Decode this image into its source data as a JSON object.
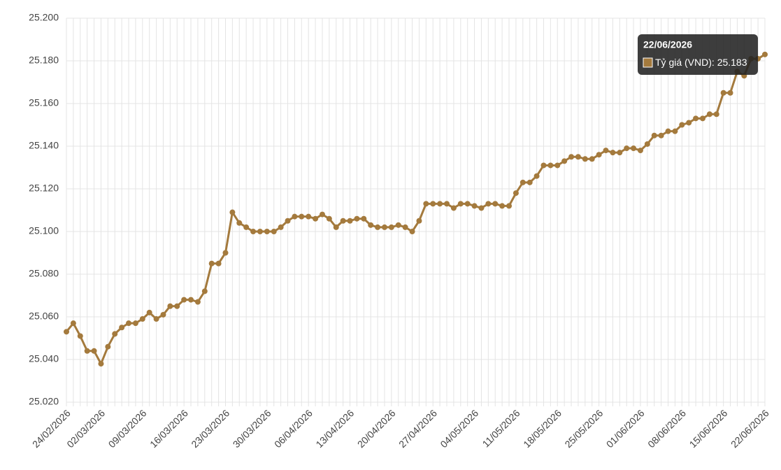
{
  "chart_data": {
    "type": "line",
    "x": [
      "24/02/2026",
      null,
      null,
      null,
      null,
      "02/03/2026",
      null,
      null,
      null,
      null,
      null,
      "09/03/2026",
      null,
      null,
      null,
      null,
      null,
      "16/03/2026",
      null,
      null,
      null,
      null,
      null,
      "23/03/2026",
      null,
      null,
      null,
      null,
      null,
      "30/03/2026",
      null,
      null,
      null,
      null,
      null,
      "06/04/2026",
      null,
      null,
      null,
      null,
      null,
      "13/04/2026",
      null,
      null,
      null,
      null,
      null,
      "20/04/2026",
      null,
      null,
      null,
      null,
      null,
      "27/04/2026",
      null,
      null,
      null,
      null,
      null,
      "04/05/2026",
      null,
      null,
      null,
      null,
      null,
      "11/05/2026",
      null,
      null,
      null,
      null,
      null,
      "18/05/2026",
      null,
      null,
      null,
      null,
      null,
      "25/05/2026",
      null,
      null,
      null,
      null,
      null,
      "01/06/2026",
      null,
      null,
      null,
      null,
      null,
      "08/06/2026",
      null,
      null,
      null,
      null,
      null,
      "15/06/2026",
      null,
      null,
      null,
      null,
      null,
      "22/06/2026"
    ],
    "series": [
      {
        "name": "Tỷ giá (VND)",
        "color": "#a47a3d",
        "values": [
          25053,
          25057,
          25051,
          25044,
          25044,
          25038,
          25046,
          25052,
          25055,
          25057,
          25057,
          25059,
          25062,
          25059,
          25061,
          25065,
          25065,
          25068,
          25068,
          25067,
          25072,
          25085,
          25085,
          25090,
          25109,
          25104,
          25102,
          25100,
          25100,
          25100,
          25100,
          25102,
          25105,
          25107,
          25107,
          25107,
          25106,
          25108,
          25106,
          25102,
          25105,
          25105,
          25106,
          25106,
          25103,
          25102,
          25102,
          25102,
          25103,
          25102,
          25100,
          25105,
          25113,
          25113,
          25113,
          25113,
          25111,
          25113,
          25113,
          25112,
          25111,
          25113,
          25113,
          25112,
          25112,
          25118,
          25123,
          25123,
          25126,
          25131,
          25131,
          25131,
          25133,
          25135,
          25135,
          25134,
          25134,
          25136,
          25138,
          25137,
          25137,
          25139,
          25139,
          25138,
          25141,
          25145,
          25145,
          25147,
          25147,
          25150,
          25151,
          25153,
          25153,
          25155,
          25155,
          25165,
          25165,
          25175,
          25173,
          25181,
          25181,
          25183
        ],
        "value_labels": [
          null,
          null,
          null,
          null,
          null,
          null,
          null,
          null,
          null,
          null,
          null,
          null,
          null,
          null,
          null,
          null,
          null,
          null,
          null,
          null,
          null,
          null,
          null,
          null,
          null,
          null,
          null,
          null,
          null,
          null,
          null,
          null,
          null,
          null,
          null,
          null,
          null,
          null,
          null,
          null,
          null,
          null,
          null,
          null,
          null,
          null,
          null,
          null,
          null,
          null,
          null,
          null,
          null,
          null,
          null,
          null,
          null,
          null,
          null,
          null,
          null,
          null,
          null,
          null,
          null,
          null,
          null,
          null,
          null,
          null,
          null,
          null,
          null,
          null,
          null,
          null,
          null,
          null,
          null,
          null,
          null,
          null,
          null,
          null,
          null,
          null,
          null,
          null,
          null,
          null,
          null,
          null,
          null,
          null,
          null,
          null,
          null,
          null,
          null,
          null,
          null,
          "25.183"
        ]
      }
    ],
    "ylim": [
      25020,
      25200
    ],
    "yticks": [
      {
        "value": 25020,
        "label": "25.020"
      },
      {
        "value": 25040,
        "label": "25.040"
      },
      {
        "value": 25060,
        "label": "25.060"
      },
      {
        "value": 25080,
        "label": "25.080"
      },
      {
        "value": 25100,
        "label": "25.100"
      },
      {
        "value": 25120,
        "label": "25.120"
      },
      {
        "value": 25140,
        "label": "25.140"
      },
      {
        "value": 25160,
        "label": "25.160"
      },
      {
        "value": 25180,
        "label": "25.180"
      },
      {
        "value": 25200,
        "label": "25.200"
      }
    ],
    "grid": true
  }
}
